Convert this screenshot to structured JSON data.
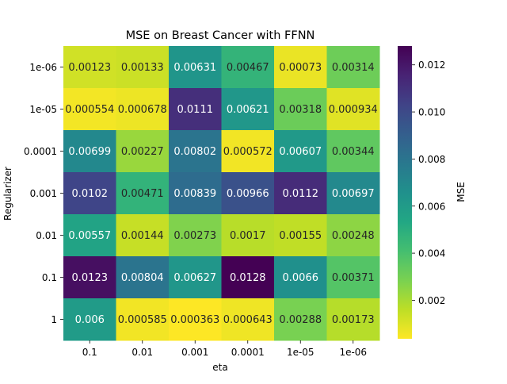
{
  "chart_data": {
    "type": "heatmap",
    "title": "MSE on Breast Cancer with FFNN",
    "xlabel": "eta",
    "ylabel": "Regularizer",
    "colorbar_label": "MSE",
    "colormap": "viridis_r",
    "x_categories": [
      "0.1",
      "0.01",
      "0.001",
      "0.0001",
      "1e-05",
      "1e-06"
    ],
    "y_categories": [
      "1e-06",
      "1e-05",
      "0.0001",
      "0.001",
      "0.01",
      "0.1",
      "1"
    ],
    "values": [
      [
        0.00123,
        0.00133,
        0.00631,
        0.00467,
        0.00073,
        0.00314
      ],
      [
        0.000554,
        0.000678,
        0.0111,
        0.00621,
        0.00318,
        0.000934
      ],
      [
        0.00699,
        0.00227,
        0.00802,
        0.000572,
        0.00607,
        0.00344
      ],
      [
        0.0102,
        0.00471,
        0.00839,
        0.00966,
        0.0112,
        0.00697
      ],
      [
        0.00557,
        0.00144,
        0.00273,
        0.0017,
        0.00155,
        0.00248
      ],
      [
        0.0123,
        0.00804,
        0.00627,
        0.0128,
        0.0066,
        0.00371
      ],
      [
        0.006,
        0.000585,
        0.000363,
        0.000643,
        0.00288,
        0.00173
      ]
    ],
    "cell_labels": [
      [
        "0.00123",
        "0.00133",
        "0.00631",
        "0.00467",
        "0.00073",
        "0.00314"
      ],
      [
        "0.000554",
        "0.000678",
        "0.0111",
        "0.00621",
        "0.00318",
        "0.000934"
      ],
      [
        "0.00699",
        "0.00227",
        "0.00802",
        "0.000572",
        "0.00607",
        "0.00344"
      ],
      [
        "0.0102",
        "0.00471",
        "0.00839",
        "0.00966",
        "0.0112",
        "0.00697"
      ],
      [
        "0.00557",
        "0.00144",
        "0.00273",
        "0.0017",
        "0.00155",
        "0.00248"
      ],
      [
        "0.0123",
        "0.00804",
        "0.00627",
        "0.0128",
        "0.0066",
        "0.00371"
      ],
      [
        "0.006",
        "0.000585",
        "0.000363",
        "0.000643",
        "0.00288",
        "0.00173"
      ]
    ],
    "color_range": [
      0.000363,
      0.0128
    ],
    "colorbar_ticks": [
      0.002,
      0.004,
      0.006,
      0.008,
      0.01,
      0.012
    ],
    "colorbar_tick_labels": [
      "0.002",
      "0.004",
      "0.006",
      "0.008",
      "0.010",
      "0.012"
    ]
  }
}
